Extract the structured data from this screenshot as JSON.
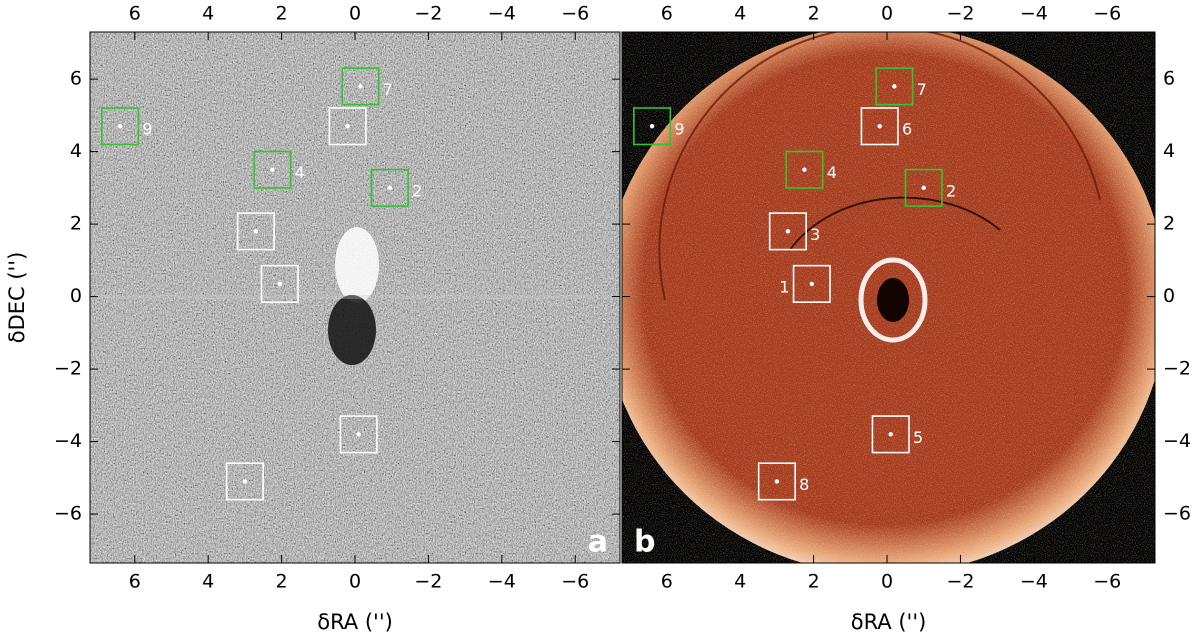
{
  "chart_data": [
    {
      "type": "image",
      "panel_label": "a",
      "xlabel": "δRA ('')",
      "ylabel": "δDEC ('')",
      "xlim": [
        7.22,
        -7.22
      ],
      "ylim": [
        -7.35,
        7.3
      ],
      "xticks": [
        6,
        4,
        2,
        0,
        {
          "value": -2,
          "label": "−2"
        },
        {
          "value": -4,
          "label": "−4"
        },
        {
          "value": -6,
          "label": "−6"
        }
      ],
      "yticks": [
        6,
        4,
        2,
        0,
        {
          "value": -2,
          "label": "−2"
        },
        {
          "value": -4,
          "label": "−4"
        },
        {
          "value": -6,
          "label": "−6"
        }
      ],
      "boxes": [
        {
          "label": "9",
          "x": 6.4,
          "y": 4.7,
          "color": "#2fc62f"
        },
        {
          "label": "7",
          "x": -0.15,
          "y": 5.8,
          "color": "#2fc62f"
        },
        {
          "label": "4",
          "x": 2.25,
          "y": 3.5,
          "color": "#2fc62f"
        },
        {
          "label": "2",
          "x": -0.95,
          "y": 3.0,
          "color": "#2fc62f"
        },
        {
          "x": 0.2,
          "y": 4.7,
          "color": "#ffffff"
        },
        {
          "x": 2.7,
          "y": 1.8,
          "color": "#ffffff"
        },
        {
          "x": 2.05,
          "y": 0.35,
          "color": "#ffffff"
        },
        {
          "x": -0.1,
          "y": -3.8,
          "color": "#ffffff"
        },
        {
          "x": 3.0,
          "y": -5.1,
          "color": "#ffffff"
        }
      ]
    },
    {
      "type": "image",
      "panel_label": "b",
      "xlabel": "δRA ('')",
      "xlim": [
        7.22,
        -7.3
      ],
      "ylim": [
        -7.35,
        7.3
      ],
      "xticks": [
        6,
        4,
        2,
        0,
        {
          "value": -2,
          "label": "−2"
        },
        {
          "value": -4,
          "label": "−4"
        },
        {
          "value": -6,
          "label": "−6"
        }
      ],
      "yticks": [
        6,
        4,
        2,
        0,
        {
          "value": -2,
          "label": "−2"
        },
        {
          "value": -4,
          "label": "−4"
        },
        {
          "value": -6,
          "label": "−6"
        }
      ],
      "boxes": [
        {
          "label": "7",
          "x": -0.2,
          "y": 5.8,
          "color": "#2fc62f"
        },
        {
          "label": "6",
          "x": 0.2,
          "y": 4.7,
          "color": "#ffffff"
        },
        {
          "label": "9",
          "x": 6.4,
          "y": 4.7,
          "color": "#2fc62f"
        },
        {
          "label": "4",
          "x": 2.25,
          "y": 3.5,
          "color": "#2fc62f"
        },
        {
          "label": "2",
          "x": -1.0,
          "y": 3.0,
          "color": "#2fc62f"
        },
        {
          "label": "3",
          "x": 2.7,
          "y": 1.8,
          "color": "#ffffff"
        },
        {
          "label": "1",
          "x": 2.05,
          "y": 0.35,
          "color": "#ffffff"
        },
        {
          "label": "5",
          "x": -0.1,
          "y": -3.8,
          "color": "#ffffff"
        },
        {
          "label": "8",
          "x": 3.0,
          "y": -5.1,
          "color": "#ffffff"
        }
      ]
    }
  ]
}
